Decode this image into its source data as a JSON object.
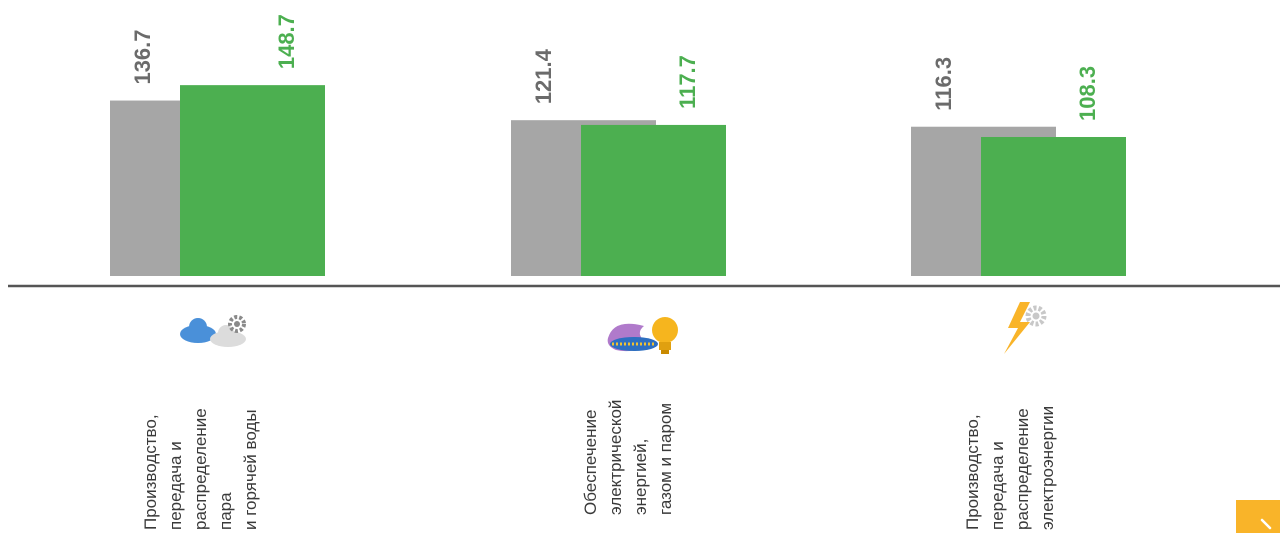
{
  "chart_data": {
    "type": "bar",
    "categories": [
      [
        "Производство,",
        "передача и",
        "распределение",
        "пара",
        "и горячей воды"
      ],
      [
        "Обеспечение",
        "электрической",
        "энергией,",
        "газом и паром"
      ],
      [
        "Производство,",
        "передача и",
        "распределение",
        "электроэнергии"
      ]
    ],
    "series": [
      {
        "values": [
          136.7,
          121.4,
          116.3
        ],
        "color": "#a6a6a6",
        "label_color": "#6b6b6b"
      },
      {
        "values": [
          148.7,
          117.7,
          108.3
        ],
        "color": "#4caf50",
        "label_color": "#4caf50"
      }
    ],
    "value_labels": [
      [
        "136.7",
        "121.4",
        "116.3"
      ],
      [
        "148.7",
        "117.7",
        "108.3"
      ]
    ],
    "legend": "none",
    "grid": false
  },
  "icons": [
    "cloud-gear-icon",
    "gas-flame-lightbulb-icon",
    "lightning-gear-icon"
  ],
  "colors": {
    "axis": "#555555",
    "text": "#3a3a3a",
    "badge": "#f9b429"
  }
}
